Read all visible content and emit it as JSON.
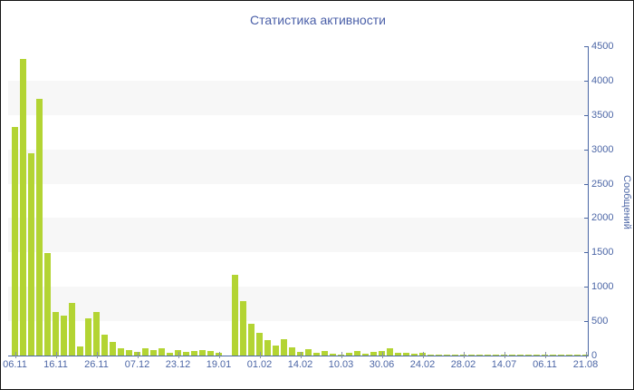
{
  "window": {
    "title": "Статистика активности"
  },
  "chart_data": {
    "type": "bar",
    "title": "Статистика активности",
    "xlabel": "",
    "ylabel": "Сообщений",
    "ylim": [
      0,
      4500
    ],
    "y_ticks": [
      0,
      500,
      1000,
      1500,
      2000,
      2500,
      3000,
      3500,
      4000,
      4500
    ],
    "x_tick_labels": [
      "06.11",
      "16.11",
      "26.11",
      "07.12",
      "23.12",
      "19.01",
      "01.02",
      "14.02",
      "10.03",
      "30.06",
      "24.02",
      "28.02",
      "14.07",
      "06.11",
      "21.08"
    ],
    "bars_per_x_tick": 5,
    "values": [
      3330,
      4310,
      2940,
      3740,
      1490,
      640,
      585,
      760,
      135,
      540,
      640,
      310,
      200,
      100,
      80,
      50,
      110,
      80,
      110,
      35,
      85,
      55,
      60,
      75,
      60,
      45,
      0,
      1180,
      795,
      460,
      330,
      230,
      145,
      240,
      125,
      50,
      95,
      40,
      60,
      25,
      15,
      40,
      65,
      25,
      50,
      60,
      100,
      35,
      45,
      30,
      40,
      15,
      20,
      15,
      12,
      15,
      10,
      15,
      10,
      15,
      10,
      15,
      10,
      15,
      10,
      15,
      10,
      15,
      10,
      15,
      10
    ],
    "grid": "horizontal-stripes",
    "legend": "none",
    "colors": {
      "bar": "#b3d433",
      "axis_line": "#4a66a4",
      "tick_label": "#4c66a6",
      "title_text": "#4a5fa8",
      "stripe_gray": "#f7f7f7",
      "stripe_white": "#ffffff",
      "x_tick_mark": "#8892a8",
      "background": "#ffffff",
      "border": "#141414"
    }
  }
}
